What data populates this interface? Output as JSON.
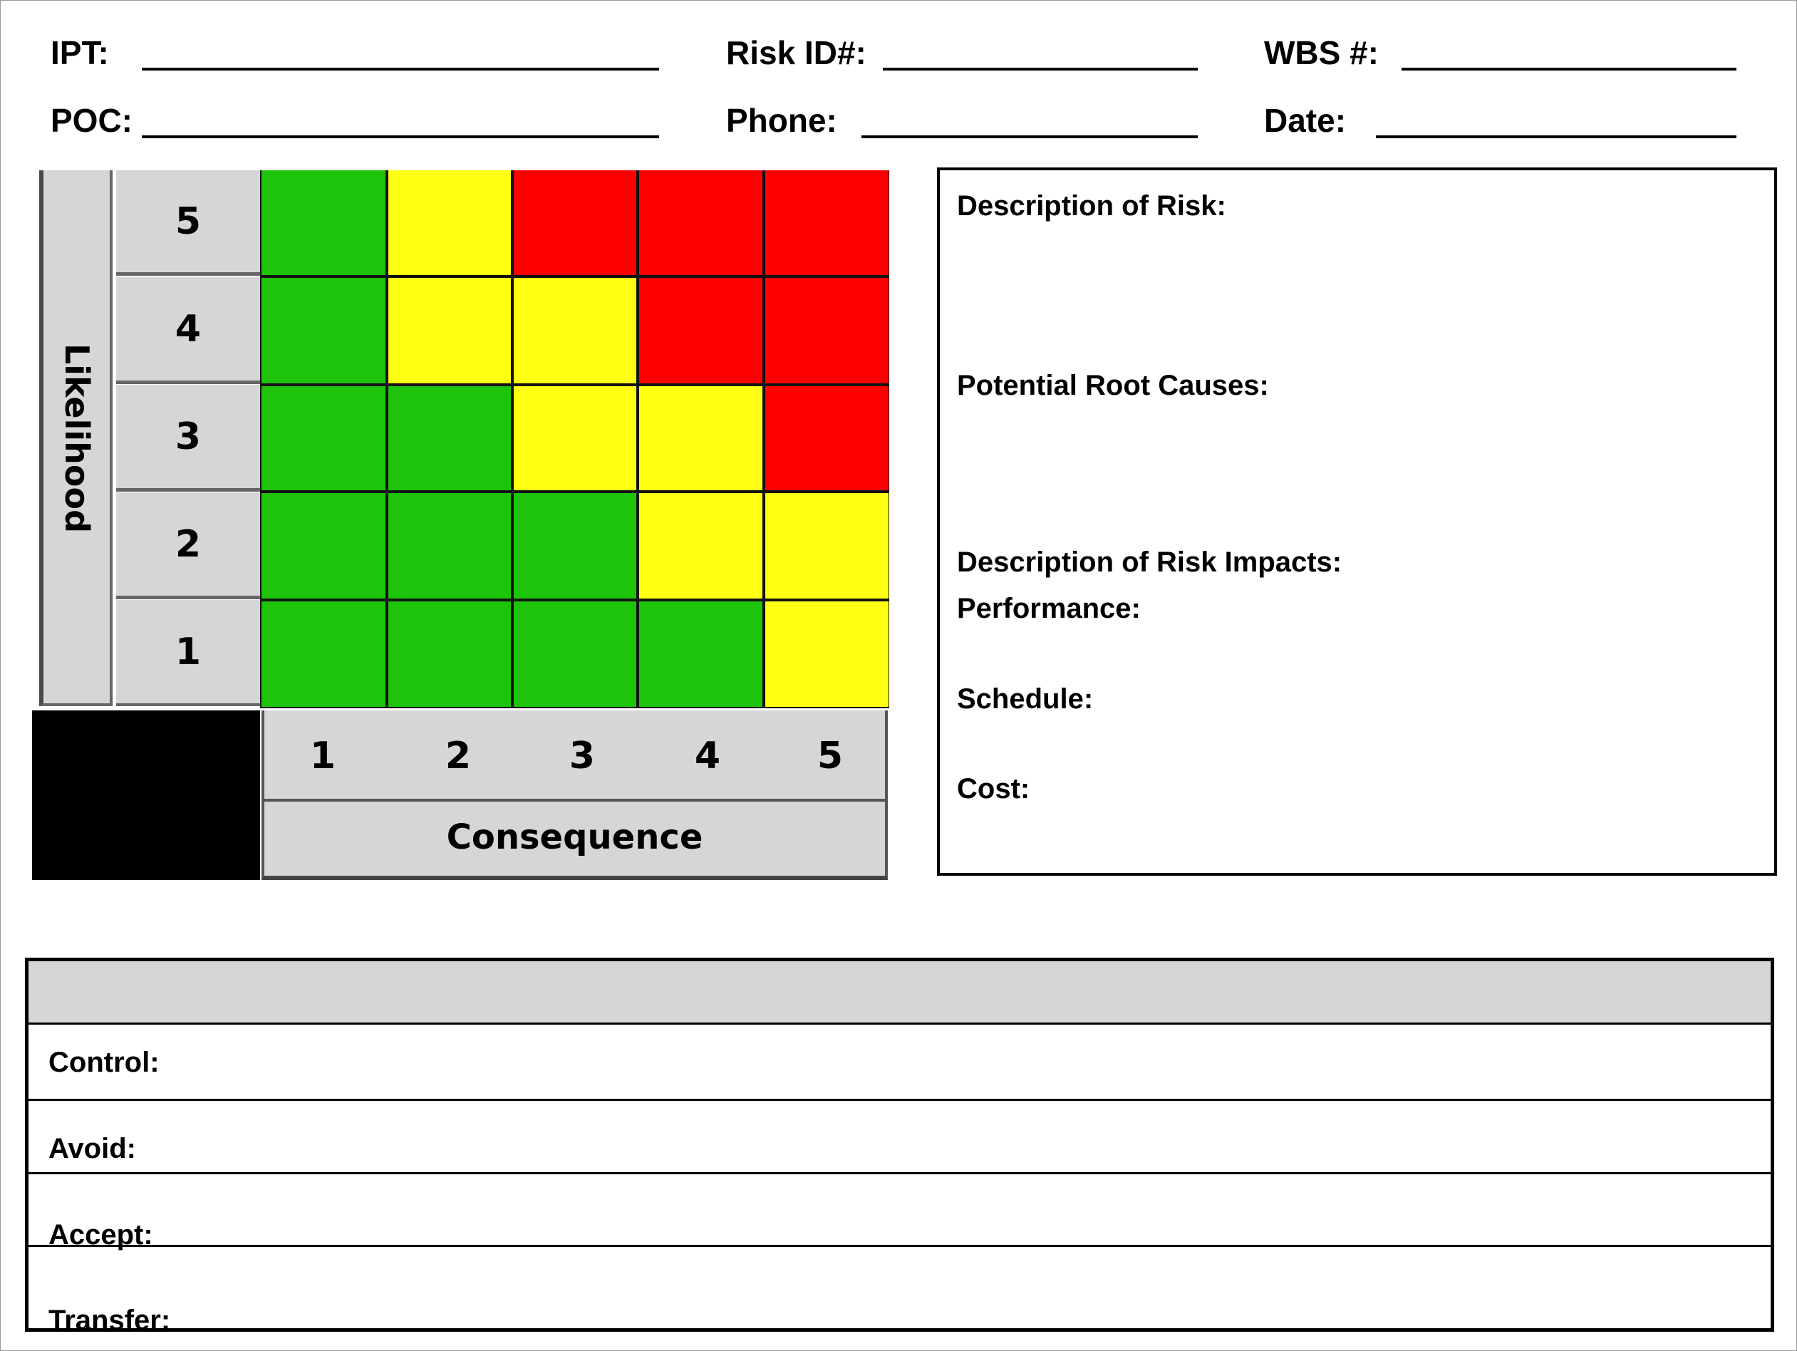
{
  "header": {
    "ipt_label": "IPT:",
    "risk_id_label": "Risk ID#:",
    "wbs_label": "WBS #:",
    "poc_label": "POC:",
    "phone_label": "Phone:",
    "date_label": "Date:"
  },
  "matrix": {
    "likelihood_label": "Likelihood",
    "consequence_label": "Consequence",
    "likelihood_levels": [
      "5",
      "4",
      "3",
      "2",
      "1"
    ],
    "consequence_levels": [
      "1",
      "2",
      "3",
      "4",
      "5"
    ],
    "colors": {
      "green": "#1dc40a",
      "yellow": "#ffff14",
      "red": "#ff0000",
      "gray": "#d6d6d6"
    },
    "grid": [
      [
        "green",
        "yellow",
        "red",
        "red",
        "red"
      ],
      [
        "green",
        "yellow",
        "yellow",
        "red",
        "red"
      ],
      [
        "green",
        "green",
        "yellow",
        "yellow",
        "red"
      ],
      [
        "green",
        "green",
        "green",
        "yellow",
        "yellow"
      ],
      [
        "green",
        "green",
        "green",
        "green",
        "yellow"
      ]
    ]
  },
  "risk_details": {
    "description_label": "Description of Risk:",
    "root_causes_label": "Potential Root Causes:",
    "impacts_label": "Description of Risk Impacts:",
    "performance_label": "Performance:",
    "schedule_label": "Schedule:",
    "cost_label": "Cost:"
  },
  "mitigation": {
    "control_label": "Control:",
    "avoid_label": "Avoid:",
    "accept_label": "Accept:",
    "transfer_label": "Transfer:"
  }
}
